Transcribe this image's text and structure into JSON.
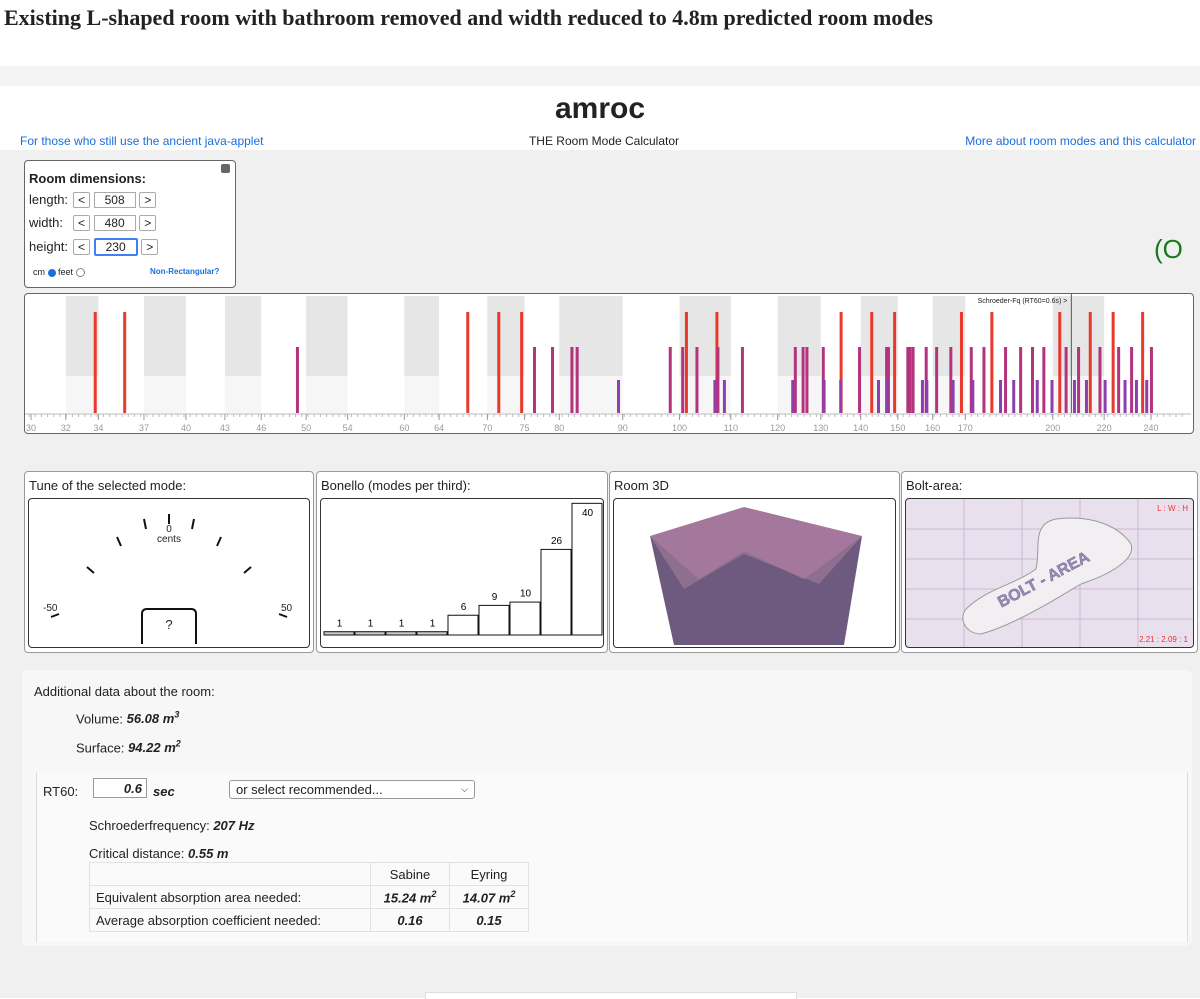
{
  "header": {
    "title": "Existing L-shaped room with bathroom removed and width reduced to 4.8m predicted room modes"
  },
  "app": {
    "name": "amroc",
    "subtitle": "THE Room Mode Calculator",
    "link_left": "For those who still use the ancient java-applet",
    "link_right": "More about room modes and this calculator",
    "logo": "(O"
  },
  "dimensions": {
    "title": "Room dimensions:",
    "prev": "<",
    "next": ">",
    "rows": [
      {
        "label": "length:",
        "value": "508"
      },
      {
        "label": "width:",
        "value": "480"
      },
      {
        "label": "height:",
        "value": "230"
      }
    ],
    "unit_cm": "cm",
    "unit_feet": "feet",
    "non_rect": "Non-Rectangular?"
  },
  "spectrum": {
    "schroeder_label": "Schroeder-Fq (RT60=0.6s) >",
    "xlim": [
      30,
      250
    ],
    "log_scale": true,
    "ticks": [
      30,
      32,
      34,
      37,
      40,
      43,
      46,
      50,
      54,
      60,
      64,
      70,
      75,
      80,
      90,
      100,
      110,
      120,
      130,
      140,
      150,
      160,
      170,
      200,
      220,
      240
    ],
    "series": [
      {
        "color": "#e8392c",
        "values": [
          33.8,
          35.7,
          67.5,
          71.5,
          74.6,
          101.3,
          107.2,
          135.0,
          142.9,
          149.1,
          168.8,
          178.6,
          202.6,
          214.4,
          223.7,
          236.3
        ]
      },
      {
        "color": "#b3337e",
        "values": [
          49.2,
          76.4,
          79.0,
          81.9,
          82.7,
          98.3,
          100.6,
          103.3,
          107.4,
          112.4,
          124.0,
          125.8,
          126.7,
          130.6,
          139.7,
          146.9,
          147.4,
          152.8,
          152.9,
          153.4,
          154.3,
          158.1,
          161.2,
          165.5,
          171.9,
          176.0,
          183.2,
          188.4,
          192.6,
          196.7,
          205.0,
          209.8,
          218.3,
          226.0,
          231.5,
          240.2
        ]
      },
      {
        "color": "#8d3fae",
        "values": [
          89.3,
          106.8,
          108.7,
          123.4,
          130.8,
          134.9,
          144.7,
          147.0,
          157.0,
          158.3,
          166.2,
          172.4,
          181.5,
          186.0,
          194.3,
          199.7,
          208.2,
          212.9,
          220.4,
          228.7,
          233.6,
          238.1
        ]
      }
    ]
  },
  "gauge": {
    "title": "Tune of the selected mode:",
    "center": "0",
    "unit": "cents",
    "min": "-50",
    "max": "50",
    "selected": "?"
  },
  "bonello": {
    "title": "Bonello (modes per third):",
    "values": [
      1,
      1,
      1,
      1,
      6,
      9,
      10,
      26,
      40
    ],
    "bar_colors": [
      "#c8c8c8",
      "#c8c8c8",
      "#c8c8c8",
      "#c8c8c8",
      "#ffffff",
      "#ffffff",
      "#ffffff",
      "#ffffff",
      "#ffffff"
    ]
  },
  "room3d": {
    "title": "Room 3D"
  },
  "bolt": {
    "title": "Bolt-area:",
    "ratio_label": "L : W : H",
    "ratio": "2.21 : 2.09 : 1",
    "area_label": "BOLT - AREA"
  },
  "additional": {
    "title": "Additional data about the room:",
    "volume": {
      "label": "Volume:",
      "value": "56.08 m",
      "exp": "3"
    },
    "surface": {
      "label": "Surface:",
      "value": "94.22 m",
      "exp": "2"
    },
    "rt60": {
      "label": "RT60:",
      "value": "0.6",
      "unit": "sec",
      "select": "or select recommended..."
    },
    "schroeder": {
      "label": "Schroederfrequency:",
      "value": 207,
      "unit": "Hz"
    },
    "critical": {
      "label": "Critical distance:",
      "value": "0.55 m"
    },
    "table": {
      "header": [
        "Sabine",
        "Eyring"
      ],
      "rows": [
        {
          "label": "Equivalent absorption area needed:",
          "cells": [
            {
              "value": "15.24 m",
              "exp": "2"
            },
            {
              "value": "14.07 m",
              "exp": "2"
            }
          ]
        },
        {
          "label": "Average absorption coefficient needed:",
          "cells": [
            {
              "value": "0.16"
            },
            {
              "value": "0.15"
            }
          ]
        }
      ]
    }
  }
}
